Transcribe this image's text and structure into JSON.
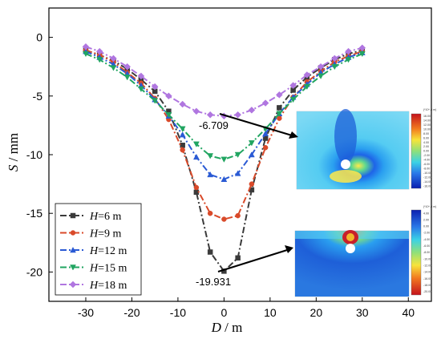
{
  "chart_data": {
    "type": "line",
    "title": "",
    "xlabel": {
      "italic": "D",
      "unit": " / m"
    },
    "ylabel": {
      "italic": "S",
      "unit": " / mm"
    },
    "xlim": [
      -38,
      45
    ],
    "ylim": [
      -22.5,
      2.5
    ],
    "xticks": [
      -30,
      -20,
      -10,
      0,
      10,
      20,
      30,
      40
    ],
    "yticks": [
      0,
      -5,
      -10,
      -15,
      -20
    ],
    "grid": false,
    "legend_position": "bottom-left",
    "series": [
      {
        "name": "H=6 m",
        "label_italic": "H",
        "label_rest": "=6 m",
        "color": "#3a3a3a",
        "marker": "square",
        "x": [
          -30,
          -27,
          -24,
          -21,
          -18,
          -15,
          -12,
          -9,
          -6,
          -3,
          0,
          3,
          6,
          9,
          12,
          15,
          18,
          21,
          24,
          27,
          30
        ],
        "y": [
          -1.1,
          -1.5,
          -2.0,
          -2.7,
          -3.6,
          -4.6,
          -6.3,
          -9.2,
          -13.2,
          -18.3,
          -19.931,
          -18.8,
          -13.0,
          -8.6,
          -6.0,
          -4.5,
          -3.4,
          -2.6,
          -1.9,
          -1.4,
          -1.1
        ]
      },
      {
        "name": "H=9 m",
        "label_italic": "H",
        "label_rest": "=9 m",
        "color": "#d94a2a",
        "marker": "circle",
        "x": [
          -30,
          -27,
          -24,
          -21,
          -18,
          -15,
          -12,
          -9,
          -6,
          -3,
          0,
          3,
          6,
          9,
          12,
          15,
          18,
          21,
          24,
          27,
          30
        ],
        "y": [
          -1.1,
          -1.5,
          -2.1,
          -3.0,
          -3.9,
          -5.2,
          -7.0,
          -9.6,
          -12.8,
          -15.0,
          -15.5,
          -15.2,
          -12.5,
          -9.4,
          -6.9,
          -5.1,
          -3.8,
          -2.9,
          -2.1,
          -1.6,
          -1.2
        ]
      },
      {
        "name": "H=12 m",
        "label_italic": "H",
        "label_rest": "=12 m",
        "color": "#2a5ad4",
        "marker": "triangle",
        "x": [
          -30,
          -27,
          -24,
          -21,
          -18,
          -15,
          -12,
          -9,
          -6,
          -3,
          0,
          3,
          6,
          9,
          12,
          15,
          18,
          21,
          24,
          27,
          30
        ],
        "y": [
          -1.2,
          -1.7,
          -2.3,
          -3.1,
          -4.1,
          -5.3,
          -6.7,
          -8.3,
          -10.2,
          -11.7,
          -12.1,
          -11.6,
          -10.0,
          -8.2,
          -6.5,
          -5.1,
          -4.0,
          -3.0,
          -2.3,
          -1.7,
          -1.3
        ]
      },
      {
        "name": "H=15 m",
        "label_italic": "H",
        "label_rest": "=15 m",
        "color": "#21a561",
        "marker": "triangle-down",
        "x": [
          -30,
          -27,
          -24,
          -21,
          -18,
          -15,
          -12,
          -9,
          -6,
          -3,
          0,
          3,
          6,
          9,
          12,
          15,
          18,
          21,
          24,
          27,
          30
        ],
        "y": [
          -1.4,
          -1.9,
          -2.6,
          -3.4,
          -4.4,
          -5.4,
          -6.6,
          -7.8,
          -9.1,
          -10.1,
          -10.4,
          -10.0,
          -9.0,
          -7.8,
          -6.5,
          -5.3,
          -4.2,
          -3.3,
          -2.5,
          -1.9,
          -1.4
        ]
      },
      {
        "name": "H=18 m",
        "label_italic": "H",
        "label_rest": "=18 m",
        "color": "#b076e0",
        "marker": "diamond",
        "x": [
          -30,
          -27,
          -24,
          -21,
          -18,
          -15,
          -12,
          -9,
          -6,
          -3,
          0,
          3,
          6,
          9,
          12,
          15,
          18,
          21,
          24,
          27,
          30
        ],
        "y": [
          -0.8,
          -1.2,
          -1.8,
          -2.5,
          -3.3,
          -4.2,
          -5.0,
          -5.7,
          -6.3,
          -6.6,
          -6.709,
          -6.6,
          -6.2,
          -5.6,
          -4.9,
          -4.1,
          -3.2,
          -2.5,
          -1.8,
          -1.2,
          -0.9
        ]
      }
    ],
    "annotations": [
      {
        "text": "-6.709",
        "x": 0,
        "y": -6.709
      },
      {
        "text": "-19.931",
        "x": 0,
        "y": -19.931
      }
    ],
    "insets": [
      {
        "kind": "contour-map",
        "unit_label": "(*10^-3 m)",
        "scale_labels": [
          "16.00",
          "14.00",
          "12.00",
          "10.00",
          "8.00",
          "6.00",
          "4.00",
          "2.00",
          "0.00",
          "-2.00",
          "-4.00",
          "-6.00",
          "-8.00",
          "-10.00",
          "-12.00",
          "-14.00",
          "-16.00"
        ]
      },
      {
        "kind": "contour-map",
        "unit_label": "(*10^-3 m)",
        "scale_labels": [
          "4.00",
          "2.00",
          "0.00",
          "-2.00",
          "-4.00",
          "-6.00",
          "-8.00",
          "-10.00",
          "-12.00",
          "-14.00",
          "-16.00",
          "-18.00",
          "-20.00"
        ]
      }
    ]
  }
}
